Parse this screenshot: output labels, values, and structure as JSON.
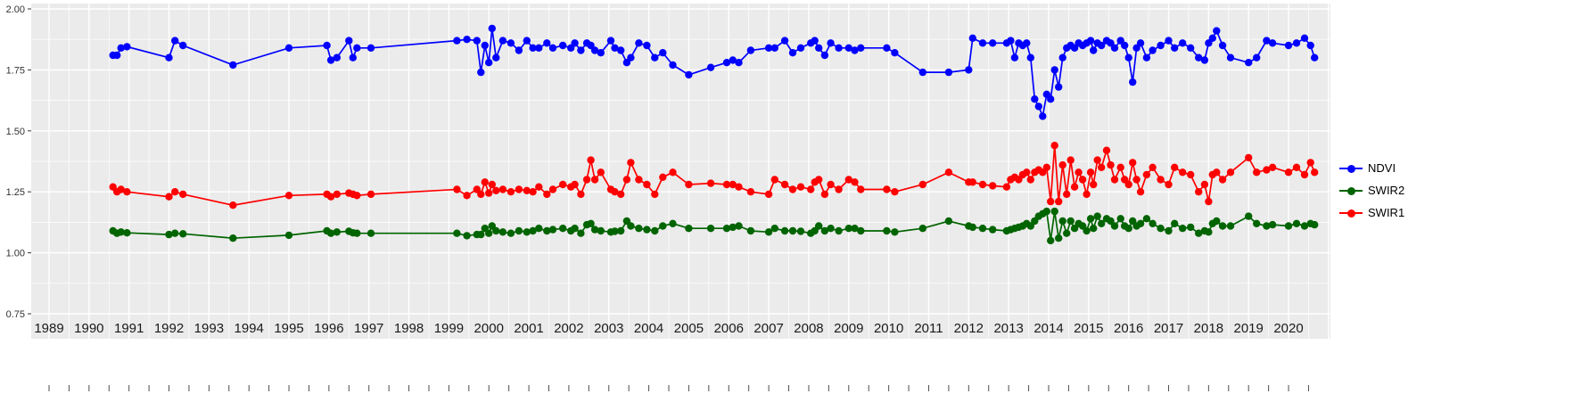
{
  "legend": {
    "items": [
      {
        "label": "NDVI",
        "color": "#0000FF"
      },
      {
        "label": "SWIR2",
        "color": "#006400"
      },
      {
        "label": "SWIR1",
        "color": "#FF0000"
      }
    ]
  },
  "chart_data": {
    "type": "line",
    "title": "",
    "xlabel": "",
    "ylabel": "",
    "grid": true,
    "legend_position": "right",
    "xlim": [
      1988.55,
      2021.05
    ],
    "ylim": [
      0.75,
      2.0
    ],
    "x_ticks": [
      "1989",
      "1990",
      "1991",
      "1992",
      "1993",
      "1994",
      "1995",
      "1996",
      "1997",
      "1998",
      "1999",
      "2000",
      "2001",
      "2002",
      "2003",
      "2004",
      "2005",
      "2006",
      "2007",
      "2008",
      "2009",
      "2010",
      "2011",
      "2012",
      "2013",
      "2014",
      "2015",
      "2016",
      "2017",
      "2018",
      "2019",
      "2020"
    ],
    "y_ticks": [
      {
        "value": 2.0,
        "label": "2.00"
      },
      {
        "value": 1.75,
        "label": "1.75"
      },
      {
        "value": 1.5,
        "label": "1.50"
      },
      {
        "value": 1.25,
        "label": "1.25"
      },
      {
        "value": 1.0,
        "label": "1.00"
      },
      {
        "value": 0.75,
        "label": "0.75"
      }
    ],
    "style": {
      "panel_bg": "#EBEBEB",
      "grid_major": "#FFFFFF",
      "grid_minor": "#FFFFFF",
      "axis_text": "#333333",
      "x_label_color": "#1a1a1a",
      "tick_color": "#4d4d4d"
    },
    "x": [
      1990.6,
      1990.7,
      1990.8,
      1990.95,
      1992.0,
      1992.15,
      1992.35,
      1993.6,
      1995.0,
      1995.95,
      1996.05,
      1996.2,
      1996.5,
      1996.6,
      1996.7,
      1997.05,
      1999.2,
      1999.45,
      1999.7,
      1999.8,
      1999.9,
      2000.0,
      2000.08,
      2000.18,
      2000.35,
      2000.55,
      2000.75,
      2000.95,
      2001.1,
      2001.25,
      2001.45,
      2001.6,
      2001.85,
      2002.05,
      2002.15,
      2002.3,
      2002.45,
      2002.55,
      2002.65,
      2002.8,
      2003.05,
      2003.15,
      2003.3,
      2003.45,
      2003.55,
      2003.75,
      2003.95,
      2004.15,
      2004.35,
      2004.6,
      2005.0,
      2005.55,
      2005.95,
      2006.1,
      2006.25,
      2006.55,
      2007.0,
      2007.15,
      2007.4,
      2007.6,
      2007.8,
      2008.05,
      2008.15,
      2008.25,
      2008.4,
      2008.55,
      2008.75,
      2009.0,
      2009.15,
      2009.3,
      2009.95,
      2010.15,
      2010.85,
      2011.5,
      2012.0,
      2012.1,
      2012.35,
      2012.6,
      2012.95,
      2013.05,
      2013.15,
      2013.25,
      2013.35,
      2013.45,
      2013.55,
      2013.65,
      2013.75,
      2013.85,
      2013.95,
      2014.05,
      2014.15,
      2014.25,
      2014.35,
      2014.45,
      2014.55,
      2014.65,
      2014.75,
      2014.85,
      2014.95,
      2015.05,
      2015.12,
      2015.22,
      2015.32,
      2015.45,
      2015.55,
      2015.65,
      2015.8,
      2015.9,
      2016.0,
      2016.1,
      2016.2,
      2016.3,
      2016.45,
      2016.6,
      2016.8,
      2017.0,
      2017.15,
      2017.35,
      2017.55,
      2017.75,
      2017.9,
      2018.0,
      2018.1,
      2018.2,
      2018.35,
      2018.55,
      2019.0,
      2019.2,
      2019.45,
      2019.6,
      2020.0,
      2020.2,
      2020.4,
      2020.55,
      2020.65
    ],
    "series": [
      {
        "name": "NDVI",
        "color": "#0000FF",
        "values": [
          1.81,
          1.81,
          1.84,
          1.845,
          1.8,
          1.87,
          1.85,
          1.77,
          1.84,
          1.85,
          1.79,
          1.8,
          1.87,
          1.8,
          1.84,
          1.84,
          1.87,
          1.875,
          1.87,
          1.74,
          1.85,
          1.78,
          1.92,
          1.8,
          1.87,
          1.86,
          1.83,
          1.87,
          1.84,
          1.84,
          1.86,
          1.84,
          1.85,
          1.84,
          1.86,
          1.83,
          1.86,
          1.85,
          1.83,
          1.82,
          1.87,
          1.84,
          1.83,
          1.78,
          1.8,
          1.86,
          1.85,
          1.8,
          1.82,
          1.77,
          1.73,
          1.76,
          1.78,
          1.79,
          1.78,
          1.83,
          1.84,
          1.84,
          1.87,
          1.82,
          1.84,
          1.86,
          1.87,
          1.84,
          1.81,
          1.86,
          1.84,
          1.84,
          1.83,
          1.84,
          1.84,
          1.82,
          1.74,
          1.74,
          1.75,
          1.88,
          1.86,
          1.86,
          1.86,
          1.87,
          1.8,
          1.86,
          1.85,
          1.86,
          1.8,
          1.63,
          1.6,
          1.56,
          1.65,
          1.63,
          1.75,
          1.68,
          1.8,
          1.84,
          1.85,
          1.84,
          1.86,
          1.85,
          1.86,
          1.87,
          1.83,
          1.86,
          1.85,
          1.87,
          1.86,
          1.84,
          1.87,
          1.85,
          1.8,
          1.7,
          1.84,
          1.86,
          1.8,
          1.83,
          1.85,
          1.87,
          1.84,
          1.86,
          1.84,
          1.8,
          1.79,
          1.86,
          1.88,
          1.91,
          1.85,
          1.8,
          1.78,
          1.8,
          1.87,
          1.86,
          1.85,
          1.86,
          1.88,
          1.85,
          1.8
        ]
      },
      {
        "name": "SWIR2",
        "color": "#006400",
        "values": [
          1.09,
          1.08,
          1.085,
          1.082,
          1.075,
          1.08,
          1.078,
          1.06,
          1.072,
          1.09,
          1.08,
          1.085,
          1.088,
          1.082,
          1.08,
          1.08,
          1.08,
          1.07,
          1.075,
          1.075,
          1.1,
          1.08,
          1.11,
          1.09,
          1.085,
          1.08,
          1.09,
          1.085,
          1.09,
          1.1,
          1.09,
          1.095,
          1.1,
          1.09,
          1.1,
          1.08,
          1.115,
          1.12,
          1.095,
          1.09,
          1.085,
          1.088,
          1.09,
          1.13,
          1.11,
          1.1,
          1.095,
          1.09,
          1.11,
          1.12,
          1.1,
          1.1,
          1.1,
          1.105,
          1.11,
          1.09,
          1.085,
          1.1,
          1.09,
          1.09,
          1.088,
          1.08,
          1.09,
          1.11,
          1.09,
          1.1,
          1.09,
          1.1,
          1.1,
          1.09,
          1.09,
          1.085,
          1.1,
          1.13,
          1.11,
          1.105,
          1.1,
          1.095,
          1.09,
          1.095,
          1.1,
          1.105,
          1.11,
          1.12,
          1.11,
          1.13,
          1.15,
          1.16,
          1.17,
          1.05,
          1.17,
          1.06,
          1.13,
          1.08,
          1.13,
          1.1,
          1.12,
          1.11,
          1.09,
          1.14,
          1.1,
          1.15,
          1.12,
          1.14,
          1.13,
          1.11,
          1.14,
          1.11,
          1.1,
          1.13,
          1.11,
          1.12,
          1.14,
          1.12,
          1.1,
          1.09,
          1.12,
          1.1,
          1.105,
          1.08,
          1.09,
          1.085,
          1.12,
          1.13,
          1.11,
          1.11,
          1.15,
          1.12,
          1.11,
          1.115,
          1.11,
          1.12,
          1.11,
          1.12,
          1.115
        ]
      },
      {
        "name": "SWIR1",
        "color": "#FF0000",
        "values": [
          1.27,
          1.25,
          1.26,
          1.25,
          1.23,
          1.25,
          1.24,
          1.195,
          1.235,
          1.24,
          1.23,
          1.24,
          1.245,
          1.24,
          1.235,
          1.24,
          1.26,
          1.235,
          1.26,
          1.24,
          1.29,
          1.245,
          1.28,
          1.255,
          1.26,
          1.25,
          1.26,
          1.255,
          1.25,
          1.27,
          1.24,
          1.26,
          1.28,
          1.27,
          1.28,
          1.24,
          1.3,
          1.38,
          1.3,
          1.33,
          1.26,
          1.25,
          1.24,
          1.3,
          1.37,
          1.3,
          1.28,
          1.24,
          1.31,
          1.33,
          1.28,
          1.285,
          1.28,
          1.28,
          1.27,
          1.25,
          1.24,
          1.3,
          1.28,
          1.26,
          1.27,
          1.26,
          1.29,
          1.3,
          1.24,
          1.28,
          1.26,
          1.3,
          1.29,
          1.26,
          1.26,
          1.25,
          1.28,
          1.33,
          1.29,
          1.29,
          1.28,
          1.275,
          1.27,
          1.3,
          1.31,
          1.3,
          1.32,
          1.33,
          1.3,
          1.33,
          1.34,
          1.33,
          1.35,
          1.21,
          1.44,
          1.21,
          1.36,
          1.24,
          1.38,
          1.27,
          1.33,
          1.3,
          1.24,
          1.33,
          1.28,
          1.38,
          1.35,
          1.42,
          1.36,
          1.3,
          1.35,
          1.3,
          1.28,
          1.37,
          1.3,
          1.25,
          1.32,
          1.35,
          1.3,
          1.28,
          1.35,
          1.33,
          1.32,
          1.25,
          1.28,
          1.21,
          1.32,
          1.33,
          1.3,
          1.33,
          1.39,
          1.33,
          1.34,
          1.35,
          1.33,
          1.35,
          1.32,
          1.37,
          1.33
        ]
      }
    ]
  }
}
